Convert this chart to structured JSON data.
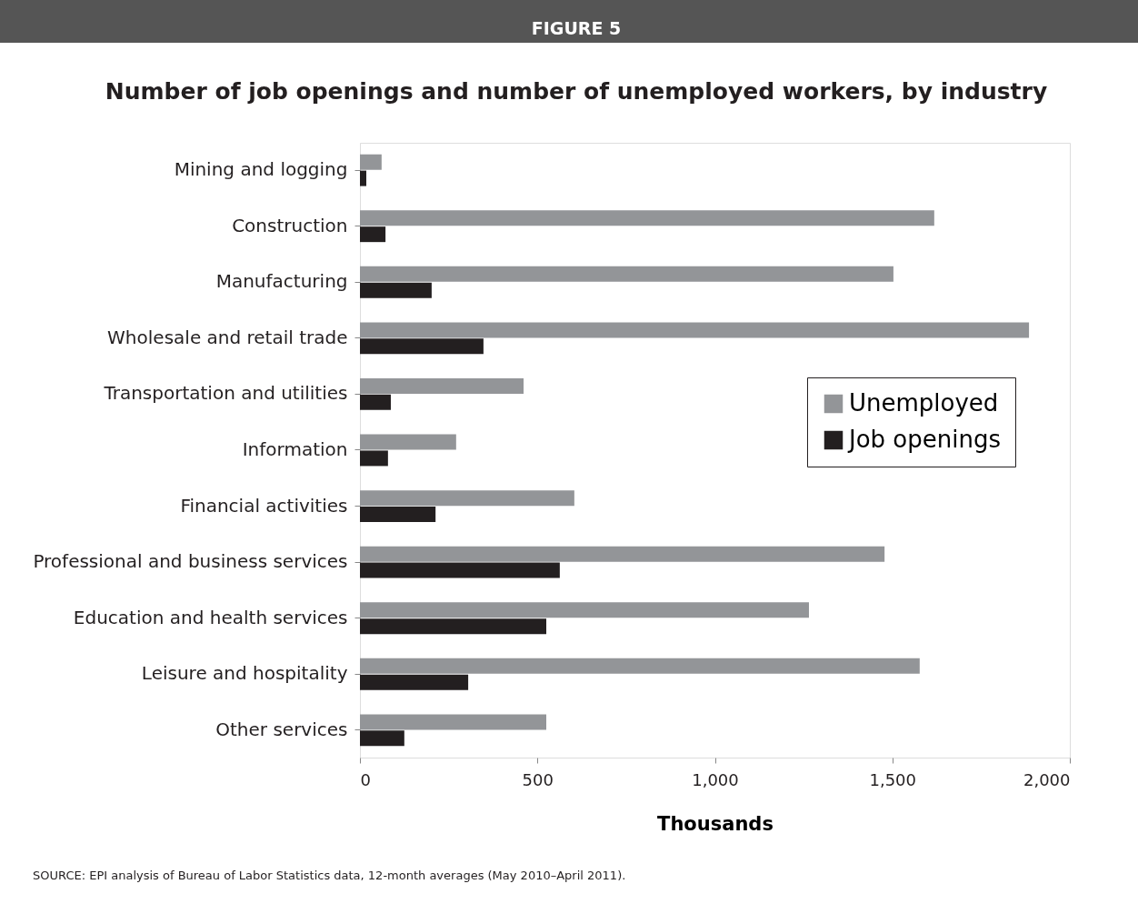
{
  "chart_data": {
    "type": "bar",
    "orientation": "horizontal",
    "title": "FIGURE 5",
    "subtitle": "Number of job openings and number of unemployed workers, by industry",
    "xlabel": "Thousands",
    "categories": [
      "Mining and logging",
      "Construction",
      "Manufacturing",
      "Wholesale and retail trade",
      "Transportation and utilities",
      "Information",
      "Financial activities",
      "Professional and business services",
      "Education and health services",
      "Leisure and hospitality",
      "Other services"
    ],
    "series": [
      {
        "name": "Unemployed",
        "color": "#939598",
        "values": [
          61,
          1618,
          1503,
          1885,
          461,
          271,
          604,
          1478,
          1265,
          1577,
          525
        ]
      },
      {
        "name": "Job openings",
        "color": "#231f20",
        "values": [
          18,
          72,
          202,
          348,
          87,
          79,
          213,
          563,
          525,
          305,
          125
        ]
      }
    ],
    "xlim": [
      0,
      2000
    ],
    "xticks": [
      0,
      500,
      {
        "value": 1000,
        "label": "1,000"
      },
      {
        "value": 1500,
        "label": "1,500"
      },
      {
        "value": 2000,
        "label": "2,000"
      }
    ],
    "grid": false,
    "legend": "right",
    "annotations": [
      "SOURCE: EPI analysis of Bureau of Labor Statistics data, 12-month averages (May 2010–April 2011)."
    ]
  }
}
